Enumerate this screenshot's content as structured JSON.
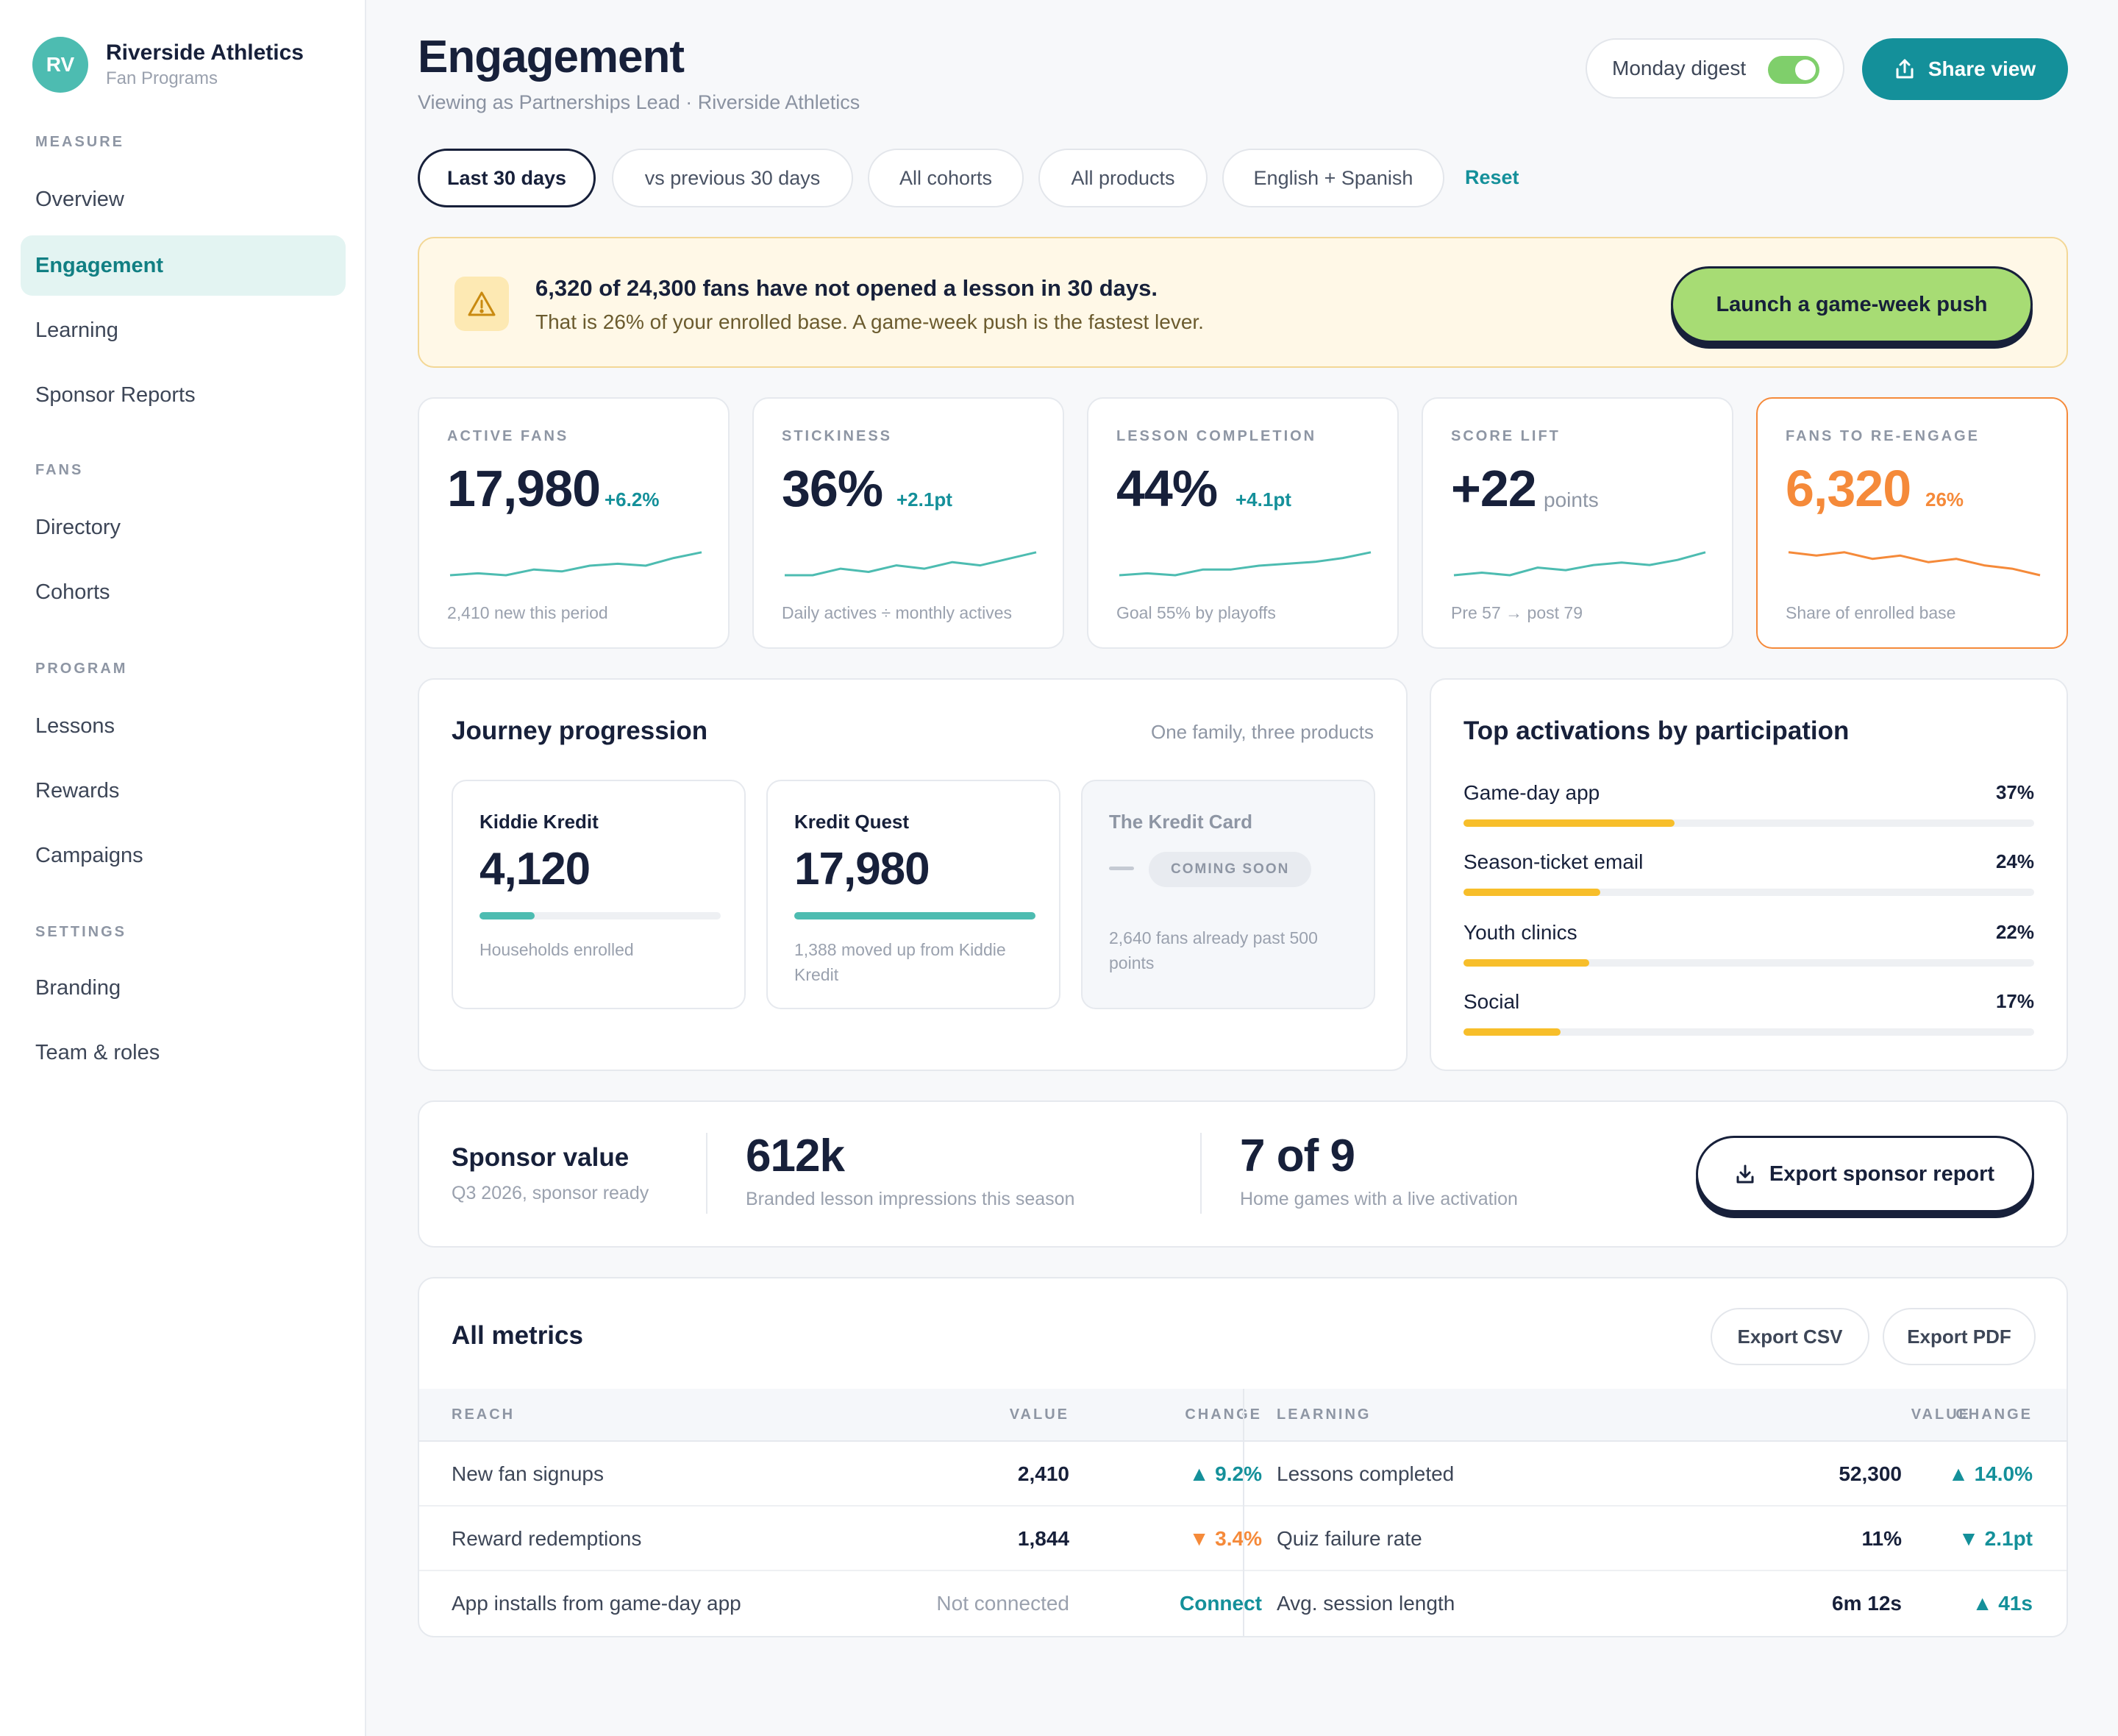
{
  "brand": {
    "initials": "RV",
    "name": "Riverside Athletics",
    "sub": "Fan Programs"
  },
  "nav": {
    "sections": [
      {
        "label": "MEASURE",
        "items": [
          "Overview",
          "Engagement",
          "Learning",
          "Sponsor Reports"
        ]
      },
      {
        "label": "FANS",
        "items": [
          "Directory",
          "Cohorts"
        ]
      },
      {
        "label": "PROGRAM",
        "items": [
          "Lessons",
          "Rewards",
          "Campaigns"
        ]
      },
      {
        "label": "SETTINGS",
        "items": [
          "Branding",
          "Team & roles"
        ]
      }
    ],
    "active": "Engagement"
  },
  "header": {
    "title": "Engagement",
    "subtitle": "Viewing as Partnerships Lead · Riverside Athletics",
    "digest_label": "Monday digest",
    "digest_on": true,
    "share_label": "Share view"
  },
  "filters": {
    "chips": [
      "Last 30 days",
      "vs previous 30 days",
      "All cohorts",
      "All products",
      "English + Spanish"
    ],
    "active_index": 0,
    "reset": "Reset"
  },
  "alert": {
    "title": "6,320 of 24,300 fans have not opened a lesson in 30 days.",
    "body": "That is 26% of your enrolled base. A game-week push is the fastest lever.",
    "action": "Launch a game-week push",
    "icon": "warning-icon"
  },
  "kpis": [
    {
      "label": "ACTIVE FANS",
      "value": "17,980",
      "delta": "+6.2%",
      "foot": "2,410 new this period",
      "trend": [
        3,
        4,
        3,
        6,
        5,
        8,
        9,
        8,
        12,
        15
      ],
      "color": "#4dbcb1"
    },
    {
      "label": "STICKINESS",
      "value": "36%",
      "delta": "+2.1pt",
      "foot": "Daily actives ÷ monthly actives",
      "trend": [
        5,
        5,
        7,
        6,
        8,
        7,
        9,
        8,
        10,
        12
      ],
      "color": "#4dbcb1"
    },
    {
      "label": "LESSON COMPLETION",
      "value": "44%",
      "delta": "+4.1pt",
      "foot": "Goal 55% by playoffs",
      "trend": [
        3,
        4,
        3,
        6,
        6,
        8,
        9,
        10,
        12,
        15
      ],
      "color": "#4dbcb1"
    },
    {
      "label": "SCORE LIFT",
      "value": "+22",
      "delta": "points",
      "foot": "Pre 57 → post 79",
      "trend": [
        4,
        5,
        4,
        7,
        6,
        8,
        9,
        8,
        10,
        13
      ],
      "color": "#4dbcb1"
    },
    {
      "label": "FANS TO RE-ENGAGE",
      "value": "6,320",
      "delta": "26%",
      "foot": "Share of enrolled base",
      "trend": [
        14,
        13,
        14,
        12,
        13,
        11,
        12,
        10,
        9,
        7
      ],
      "color": "#f58a3a"
    }
  ],
  "journey": {
    "title": "Journey progression",
    "note": "One family, three products",
    "products": [
      {
        "name": "Kiddie Kredit",
        "value": "4,120",
        "progress": 0.23,
        "foot": "Households enrolled"
      },
      {
        "name": "Kredit Quest",
        "value": "17,980",
        "progress": 1.0,
        "foot": "1,388 moved up from Kiddie Kredit"
      },
      {
        "name": "The Kredit Card",
        "badge": "COMING SOON",
        "foot": "2,640 fans already past 500 points"
      }
    ]
  },
  "activations": {
    "title": "Top activations by participation",
    "items": [
      {
        "name": "Game-day app",
        "pct": "37%",
        "value": 0.37
      },
      {
        "name": "Season-ticket email",
        "pct": "24%",
        "value": 0.24
      },
      {
        "name": "Youth clinics",
        "pct": "22%",
        "value": 0.22
      },
      {
        "name": "Social",
        "pct": "17%",
        "value": 0.17
      }
    ]
  },
  "sponsor": {
    "title": "Sponsor value",
    "sub": "Q3 2026, sponsor ready",
    "metric1": {
      "value": "612k",
      "caption": "Branded lesson impressions this season"
    },
    "metric2": {
      "value": "7 of 9",
      "caption": "Home games with a live activation"
    },
    "export_label": "Export sponsor report"
  },
  "table": {
    "title": "All metrics",
    "export_csv": "Export CSV",
    "export_pdf": "Export PDF",
    "left_headers": [
      "REACH",
      "VALUE",
      "CHANGE"
    ],
    "right_headers": [
      "LEARNING",
      "VALUE",
      "CHANGE"
    ],
    "left_rows": [
      {
        "metric": "New fan signups",
        "value": "2,410",
        "change": "▲ 9.2%",
        "dir": "up"
      },
      {
        "metric": "Reward redemptions",
        "value": "1,844",
        "change": "▼ 3.4%",
        "dir": "down"
      },
      {
        "metric": "App installs from game-day app",
        "value": "Not connected",
        "change": "Connect",
        "dir": "link"
      }
    ],
    "right_rows": [
      {
        "metric": "Lessons completed",
        "value": "52,300",
        "change": "▲ 14.0%",
        "dir": "up"
      },
      {
        "metric": "Quiz failure rate",
        "value": "11%",
        "change": "▼ 2.1pt",
        "dir": "up"
      },
      {
        "metric": "Avg. session length",
        "value": "6m 12s",
        "change": "▲ 41s",
        "dir": "up"
      }
    ]
  }
}
